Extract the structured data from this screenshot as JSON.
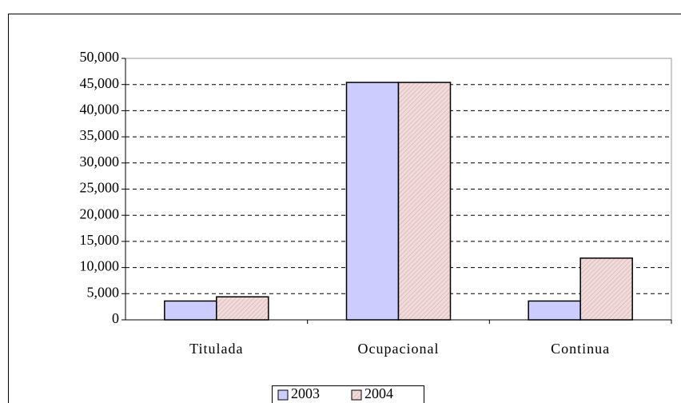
{
  "chart_data": {
    "type": "bar",
    "categories": [
      "Titulada",
      "Ocupacional",
      "Continua"
    ],
    "series": [
      {
        "name": "2003",
        "color": "#ccccff",
        "values": [
          3600,
          45400,
          3600
        ]
      },
      {
        "name": "2004",
        "color": "#f2dada",
        "hatch": true,
        "values": [
          4400,
          45400,
          11800
        ]
      }
    ],
    "ylim": [
      0,
      50000
    ],
    "yticks": [
      0,
      {
        "value": 5000,
        "label": "5,000"
      },
      {
        "value": 10000,
        "label": "10,000"
      },
      {
        "value": 15000,
        "label": "15,000"
      },
      {
        "value": 20000,
        "label": "20,000"
      },
      {
        "value": 25000,
        "label": "25,000"
      },
      {
        "value": 30000,
        "label": "30,000"
      },
      {
        "value": 35000,
        "label": "35,000"
      },
      {
        "value": 40000,
        "label": "40,000"
      },
      {
        "value": 45000,
        "label": "45,000"
      },
      {
        "value": 50000,
        "label": "50,000"
      }
    ],
    "grid": true,
    "legend": "bottom"
  }
}
